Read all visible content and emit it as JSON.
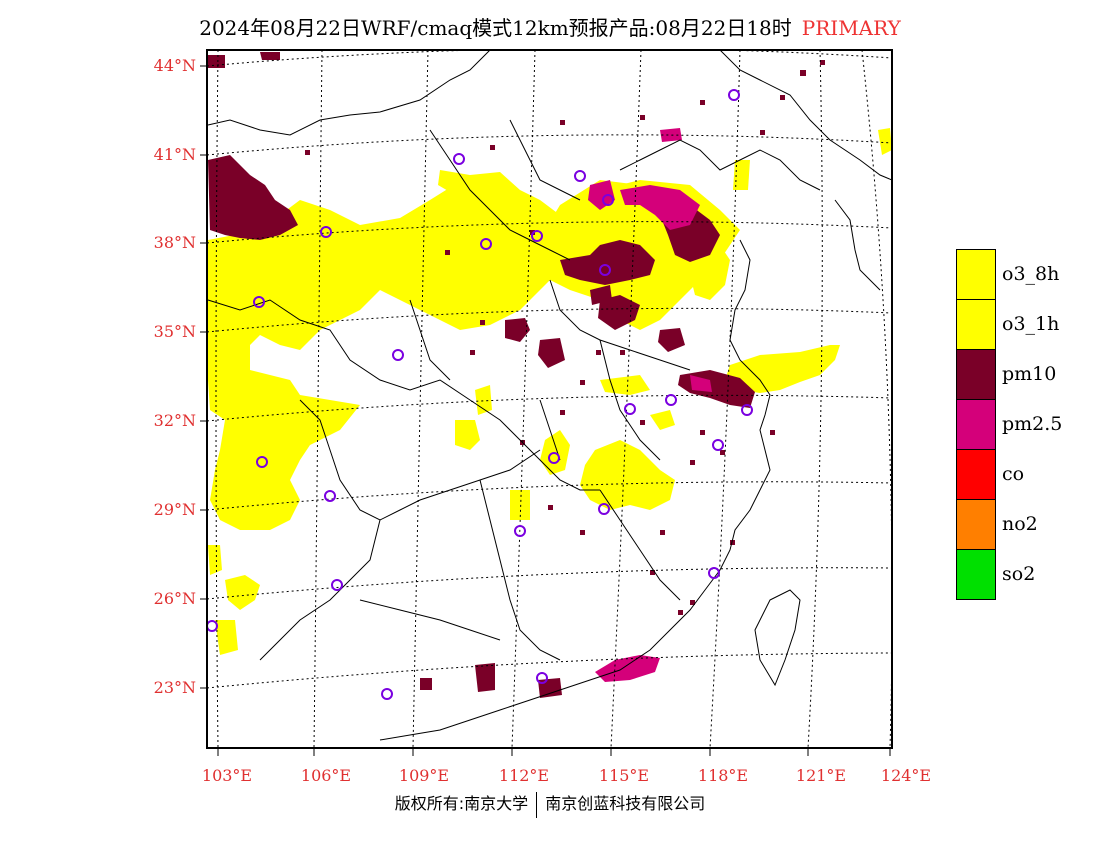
{
  "title": {
    "main": "2024年08月22日WRF/cmaq模式12km预报产品:08月22日18时",
    "tag": "PRIMARY"
  },
  "map": {
    "lat_labels": [
      "44°N",
      "41°N",
      "38°N",
      "35°N",
      "32°N",
      "29°N",
      "26°N",
      "23°N"
    ],
    "lon_labels": [
      "103°E",
      "106°E",
      "109°E",
      "112°E",
      "115°E",
      "118°E",
      "121°E",
      "124°E"
    ]
  },
  "legend": {
    "items": [
      {
        "label": "o3_8h",
        "color": "#ffff00"
      },
      {
        "label": "o3_1h",
        "color": "#ffff00"
      },
      {
        "label": "pm10",
        "color": "#7a0028"
      },
      {
        "label": "pm2.5",
        "color": "#d4007a"
      },
      {
        "label": "co",
        "color": "#ff0000"
      },
      {
        "label": "no2",
        "color": "#ff7f00"
      },
      {
        "label": "so2",
        "color": "#00e000"
      }
    ]
  },
  "footer": {
    "left": "版权所有:南京大学",
    "right": "南京创蓝科技有限公司"
  }
}
